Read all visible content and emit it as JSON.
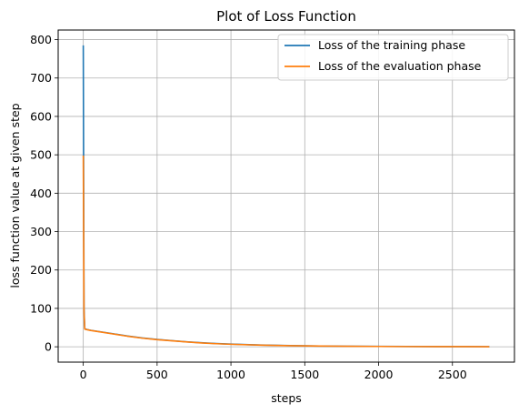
{
  "chart_data": {
    "type": "line",
    "title": "Plot of Loss Function",
    "xlabel": "steps",
    "ylabel": "loss function value at given step",
    "xlim": [
      -170,
      2920
    ],
    "ylim": [
      -40,
      825
    ],
    "xticks": [
      0,
      500,
      1000,
      1500,
      2000,
      2500
    ],
    "yticks": [
      0,
      100,
      200,
      300,
      400,
      500,
      600,
      700,
      800
    ],
    "grid": true,
    "legend": "top-right",
    "series": [
      {
        "name": "Loss of the training phase",
        "color": "#1f77b4",
        "x": [
          0,
          5,
          10,
          25,
          50,
          100,
          200,
          300,
          400,
          500,
          600,
          700,
          800,
          900,
          1000,
          1200,
          1400,
          1600,
          1800,
          2000,
          2200,
          2400,
          2600,
          2750
        ],
        "y": [
          785,
          100,
          47,
          45,
          43,
          40,
          34,
          28,
          23,
          19,
          16,
          13,
          10.5,
          8.5,
          7,
          4.5,
          3,
          2,
          1.4,
          1,
          0.7,
          0.5,
          0.4,
          0.3
        ]
      },
      {
        "name": "Loss of the evaluation phase",
        "color": "#ff7f0e",
        "x": [
          0,
          5,
          10,
          25,
          50,
          100,
          200,
          300,
          400,
          500,
          600,
          700,
          800,
          900,
          1000,
          1200,
          1400,
          1600,
          1800,
          2000,
          2200,
          2400,
          2600,
          2750
        ],
        "y": [
          498,
          90,
          46,
          44.5,
          42.5,
          39.5,
          33.5,
          27.5,
          22.5,
          18.5,
          15.5,
          12.5,
          10,
          8,
          6.5,
          4.2,
          2.8,
          1.9,
          1.3,
          0.9,
          0.6,
          0.45,
          0.35,
          0.25
        ]
      }
    ]
  }
}
